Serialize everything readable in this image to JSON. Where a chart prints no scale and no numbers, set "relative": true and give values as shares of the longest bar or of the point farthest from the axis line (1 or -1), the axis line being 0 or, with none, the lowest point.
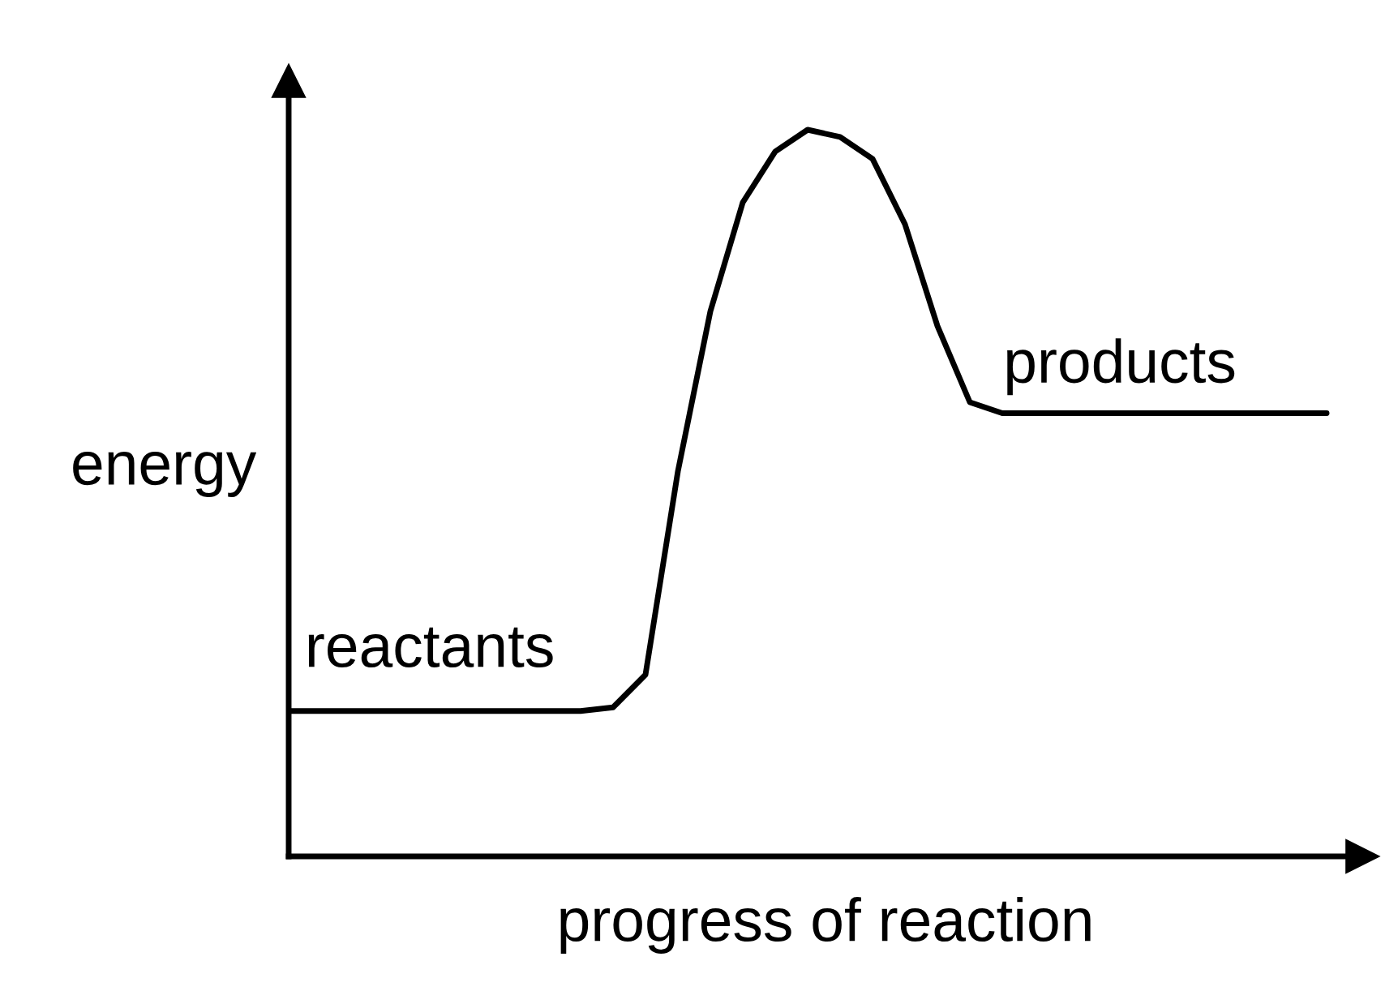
{
  "chart_data": {
    "type": "line",
    "relative": true,
    "xlabel": "progress of reaction",
    "ylabel": "energy",
    "categories": [
      null,
      null,
      null,
      null,
      null,
      null,
      null,
      null,
      null,
      null,
      null,
      null,
      null,
      null,
      null,
      null,
      null,
      null,
      null,
      null,
      null,
      null,
      null,
      null,
      null,
      null,
      null,
      null,
      null,
      null,
      null,
      null,
      null
    ],
    "series": [
      {
        "color": "#000000",
        "values": [
          0.2,
          0.2,
          0.2,
          0.2,
          0.2,
          0.2,
          0.2,
          0.2,
          0.2,
          0.2,
          0.205,
          0.25,
          0.53,
          0.75,
          0.9,
          0.97,
          1,
          0.99,
          0.96,
          0.87,
          0.73,
          0.625,
          0.61,
          0.61,
          0.61,
          0.61,
          0.61,
          0.61,
          0.61,
          0.61,
          0.61,
          0.61,
          0.61
        ]
      }
    ],
    "annotations": [
      {
        "text": "reactants",
        "y": 0.2
      },
      {
        "text": "products",
        "y": 0.61
      }
    ],
    "marker": "none",
    "line_style": "solid",
    "legend": false
  }
}
